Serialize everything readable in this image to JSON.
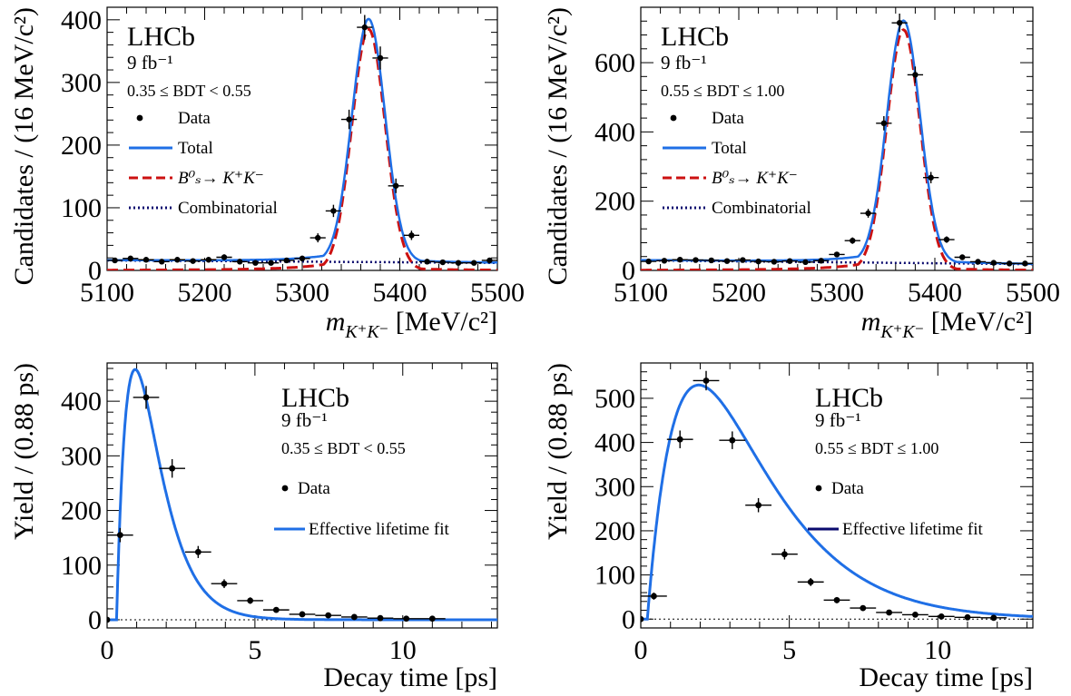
{
  "chart_data": [
    {
      "type": "scatter",
      "panel": "top-left",
      "title": "",
      "xlabel_main": "m",
      "xlabel_sub": "K⁺K⁻",
      "xlabel_unit": "[MeV/c²]",
      "ylabel": "Candidates / (16 MeV/c²)",
      "xlim": [
        5100,
        5500
      ],
      "ylim": [
        0,
        420
      ],
      "xticks": [
        5100,
        5200,
        5300,
        5400,
        5500
      ],
      "yticks": [
        0,
        100,
        200,
        300,
        400
      ],
      "info": [
        "LHCb",
        "9 fb⁻¹",
        "0.35 ≤ BDT < 0.55"
      ],
      "legend": {
        "position": "top-left",
        "entries": [
          {
            "label": "Data",
            "style": "marker"
          },
          {
            "label": "Total",
            "style": "solid"
          },
          {
            "label": "B⁰ₛ→ K⁺K⁻",
            "style": "dashed"
          },
          {
            "label": "Combinatorial",
            "style": "dotted"
          }
        ]
      },
      "colors": {
        "total": "#1f6fe6",
        "signal": "#cc1111",
        "combinatorial": "#0a0a6e",
        "data": "#000000"
      },
      "series": [
        {
          "name": "Data",
          "x": [
            5108,
            5124,
            5140,
            5156,
            5172,
            5188,
            5204,
            5220,
            5236,
            5252,
            5268,
            5284,
            5300,
            5316,
            5332,
            5348,
            5364,
            5380,
            5396,
            5412,
            5428,
            5444,
            5460,
            5476,
            5492
          ],
          "y": [
            16,
            19,
            17,
            14,
            17,
            15,
            17,
            21,
            14,
            12,
            12,
            16,
            19,
            52,
            95,
            241,
            388,
            339,
            135,
            56,
            14,
            13,
            12,
            12,
            16
          ]
        },
        {
          "name": "Total",
          "model": {
            "peak": 388,
            "mean": 5368,
            "sigma": 17,
            "bkg_start": 16,
            "bkg_end": 12
          }
        },
        {
          "name": "B⁰ₛ→ K⁺K⁻",
          "model": {
            "peak": 385,
            "mean": 5368,
            "sigma": 17
          }
        },
        {
          "name": "Combinatorial",
          "model": {
            "bkg_start": 16,
            "bkg_end": 12
          }
        }
      ]
    },
    {
      "type": "scatter",
      "panel": "top-right",
      "title": "",
      "xlabel_main": "m",
      "xlabel_sub": "K⁺K⁻",
      "xlabel_unit": "[MeV/c²]",
      "ylabel": "Candidates / (16 MeV/c²)",
      "xlim": [
        5100,
        5500
      ],
      "ylim": [
        0,
        760
      ],
      "xticks": [
        5100,
        5200,
        5300,
        5400,
        5500
      ],
      "yticks": [
        0,
        200,
        400,
        600
      ],
      "info": [
        "LHCb",
        "9 fb⁻¹",
        "0.55 ≤ BDT ≤ 1.00"
      ],
      "legend": {
        "position": "top-left",
        "entries": [
          {
            "label": "Data",
            "style": "marker"
          },
          {
            "label": "Total",
            "style": "solid"
          },
          {
            "label": "B⁰ₛ→ K⁺K⁻",
            "style": "dashed"
          },
          {
            "label": "Combinatorial",
            "style": "dotted"
          }
        ]
      },
      "colors": {
        "total": "#1f6fe6",
        "signal": "#cc1111",
        "combinatorial": "#0a0a6e",
        "data": "#000000"
      },
      "series": [
        {
          "name": "Data",
          "x": [
            5108,
            5124,
            5140,
            5156,
            5172,
            5188,
            5204,
            5220,
            5236,
            5252,
            5268,
            5284,
            5300,
            5316,
            5332,
            5348,
            5364,
            5380,
            5396,
            5412,
            5428,
            5444,
            5460,
            5476,
            5492
          ],
          "y": [
            26,
            28,
            31,
            30,
            29,
            27,
            30,
            26,
            25,
            27,
            24,
            28,
            46,
            86,
            165,
            425,
            715,
            565,
            268,
            89,
            38,
            25,
            22,
            20,
            20
          ]
        },
        {
          "name": "Total",
          "model": {
            "peak": 700,
            "mean": 5368,
            "sigma": 17,
            "bkg_start": 29,
            "bkg_end": 18
          }
        },
        {
          "name": "B⁰ₛ→ K⁺K⁻",
          "model": {
            "peak": 695,
            "mean": 5368,
            "sigma": 17
          }
        },
        {
          "name": "Combinatorial",
          "model": {
            "bkg_start": 29,
            "bkg_end": 18
          }
        }
      ]
    },
    {
      "type": "scatter",
      "panel": "bottom-left",
      "title": "",
      "xlabel": "Decay time [ps]",
      "ylabel": "Yield / (0.88 ps)",
      "xlim": [
        0,
        13.2
      ],
      "ylim": [
        -15,
        470
      ],
      "xticks": [
        0,
        5,
        10
      ],
      "yticks": [
        0,
        100,
        200,
        300,
        400
      ],
      "info": [
        "LHCb",
        "9 fb⁻¹",
        "0.35 ≤ BDT < 0.55"
      ],
      "legend": {
        "position": "top-right",
        "entries": [
          {
            "label": "Data",
            "style": "marker"
          },
          {
            "label": "Effective lifetime fit",
            "style": "solid"
          }
        ]
      },
      "colors": {
        "fit": "#1f6fe6",
        "data": "#000000"
      },
      "series": [
        {
          "name": "Data",
          "x": [
            0,
            0.44,
            1.32,
            2.2,
            3.08,
            3.96,
            4.84,
            5.72,
            6.6,
            7.48,
            8.36,
            9.24,
            10.12,
            11.0
          ],
          "y": [
            0,
            155,
            407,
            277,
            124,
            66,
            35,
            18,
            10,
            8,
            5,
            3,
            2,
            2
          ],
          "xerr": [
            0,
            0.44,
            0.44,
            0.44,
            0.44,
            0.44,
            0.44,
            0.44,
            0.44,
            0.44,
            0.44,
            0.44,
            0.44,
            0.44
          ],
          "yerr": [
            0,
            13,
            21,
            17,
            11,
            8,
            6,
            4,
            3,
            3,
            2,
            2,
            1,
            1
          ]
        },
        {
          "name": "Effective lifetime fit",
          "model": {
            "peak": 458,
            "peak_t": 0.95,
            "turn_on": 0.32
          }
        }
      ]
    },
    {
      "type": "scatter",
      "panel": "bottom-right",
      "title": "",
      "xlabel": "Decay time [ps]",
      "ylabel": "Yield / (0.88 ps)",
      "xlim": [
        0,
        13.2
      ],
      "ylim": [
        -20,
        580
      ],
      "xticks": [
        0,
        5,
        10
      ],
      "yticks": [
        0,
        100,
        200,
        300,
        400,
        500
      ],
      "info": [
        "LHCb",
        "9 fb⁻¹",
        "0.55 ≤ BDT ≤ 1.00"
      ],
      "legend": {
        "position": "top-right",
        "entries": [
          {
            "label": "Data",
            "style": "marker"
          },
          {
            "label": "Effective lifetime fit",
            "style": "solid"
          }
        ]
      },
      "colors": {
        "fit": "#1f6fe6",
        "legend_fit": "#0a0a6e",
        "data": "#000000"
      },
      "series": [
        {
          "name": "Data",
          "x": [
            0,
            0.44,
            1.32,
            2.2,
            3.08,
            3.96,
            4.84,
            5.72,
            6.6,
            7.48,
            8.36,
            9.24,
            10.12,
            11.0,
            11.88
          ],
          "y": [
            0,
            52,
            407,
            540,
            405,
            258,
            147,
            84,
            43,
            25,
            15,
            10,
            6,
            4,
            3
          ],
          "xerr": [
            0,
            0.44,
            0.44,
            0.44,
            0.44,
            0.44,
            0.44,
            0.44,
            0.44,
            0.44,
            0.44,
            0.44,
            0.44,
            0.44,
            0.44
          ],
          "yerr": [
            0,
            8,
            20,
            22,
            20,
            16,
            12,
            9,
            7,
            5,
            4,
            3,
            3,
            2,
            2
          ]
        },
        {
          "name": "Effective lifetime fit",
          "model": {
            "peak": 530,
            "peak_t": 1.95,
            "turn_on": 0.22
          }
        }
      ]
    }
  ]
}
